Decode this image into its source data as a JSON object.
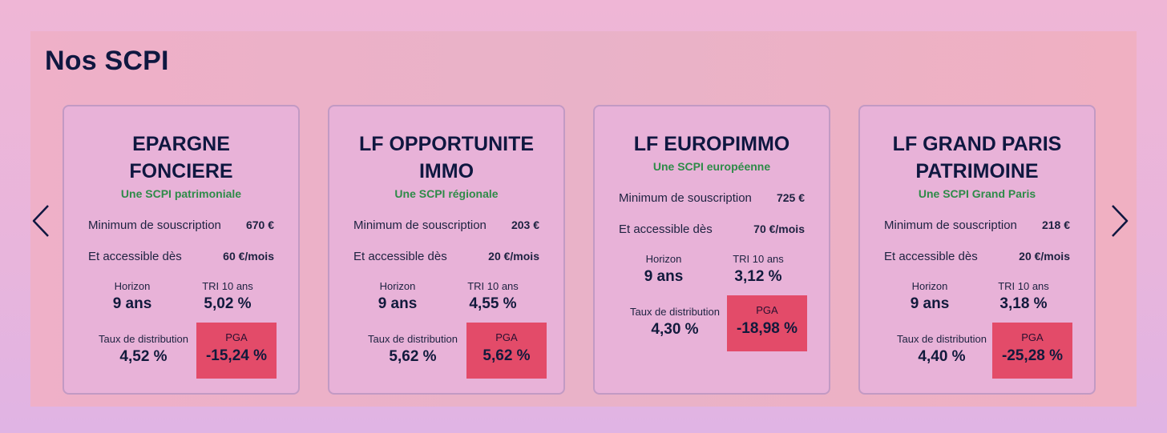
{
  "section": {
    "title": "Nos SCPI"
  },
  "navigation": {
    "prev_icon": "chevron-left-icon",
    "next_icon": "chevron-right-icon"
  },
  "labels": {
    "minimum": "Minimum de souscription",
    "accessible": "Et accessible dès",
    "horizon": "Horizon",
    "tri": "TRI 10 ans",
    "taux": "Taux de distribution",
    "pga": "PGA"
  },
  "colors": {
    "subtitle_green": "#2e8b48",
    "pga_red": "#e34b69",
    "title_navy": "#0f1740"
  },
  "cards": [
    {
      "name_line1": "EPARGNE",
      "name_line2": "FONCIERE",
      "subtitle": "Une SCPI patrimoniale",
      "minimum": "670 €",
      "accessible": "60 €/mois",
      "horizon": "9 ans",
      "tri": "5,02 %",
      "taux": "4,52 %",
      "pga": "-15,24 %"
    },
    {
      "name_line1": "LF OPPORTUNITE",
      "name_line2": "IMMO",
      "subtitle": "Une SCPI régionale",
      "minimum": "203 €",
      "accessible": "20 €/mois",
      "horizon": "9 ans",
      "tri": "4,55 %",
      "taux": "5,62 %",
      "pga": "5,62 %"
    },
    {
      "name_line1": "LF EUROPIMMO",
      "name_line2": "",
      "subtitle": "Une SCPI européenne",
      "minimum": "725 €",
      "accessible": "70 €/mois",
      "horizon": "9 ans",
      "tri": "3,12 %",
      "taux": "4,30 %",
      "pga": "-18,98 %"
    },
    {
      "name_line1": "LF GRAND PARIS",
      "name_line2": "PATRIMOINE",
      "subtitle": "Une SCPI Grand Paris",
      "minimum": "218 €",
      "accessible": "20 €/mois",
      "horizon": "9 ans",
      "tri": "3,18 %",
      "taux": "4,40 %",
      "pga": "-25,28 %"
    }
  ]
}
